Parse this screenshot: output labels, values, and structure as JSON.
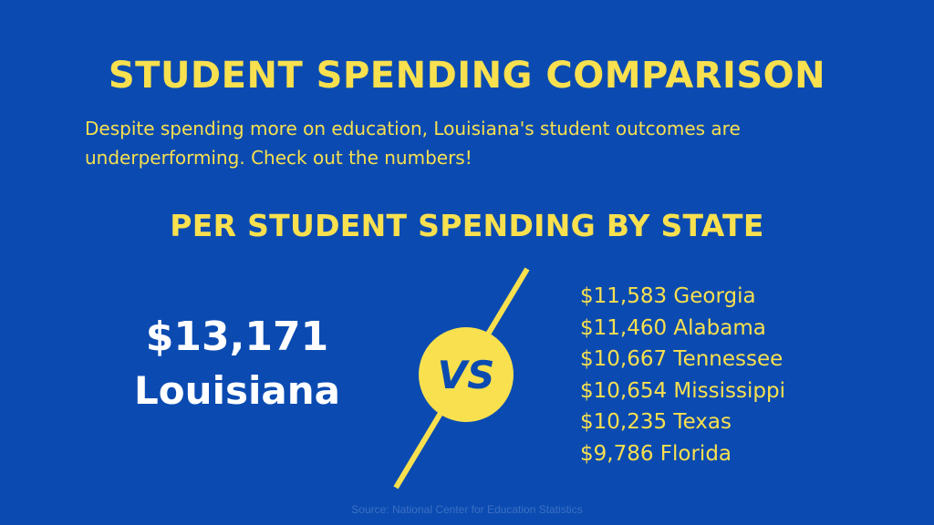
{
  "title": "STUDENT SPENDING COMPARISON",
  "subtitle": "Despite spending more on education, Louisiana's student outcomes are underperforming. Check out the numbers!",
  "section_heading": "PER STUDENT SPENDING BY STATE",
  "featured": {
    "amount": "$13,171",
    "state": "Louisiana"
  },
  "vs_label": "VS",
  "comparisons": [
    {
      "text": "$11,583 Georgia"
    },
    {
      "text": "$11,460 Alabama"
    },
    {
      "text": "$10,667 Tennessee"
    },
    {
      "text": "$10,654 Mississippi"
    },
    {
      "text": "$10,235 Texas"
    },
    {
      "text": "$9,786 Florida"
    }
  ],
  "source": "Source: National Center for Education Statistics",
  "colors": {
    "background": "#0b4bb1",
    "accent_yellow": "#f8e04f",
    "white": "#ffffff",
    "source_text": "#3b6fc4"
  }
}
